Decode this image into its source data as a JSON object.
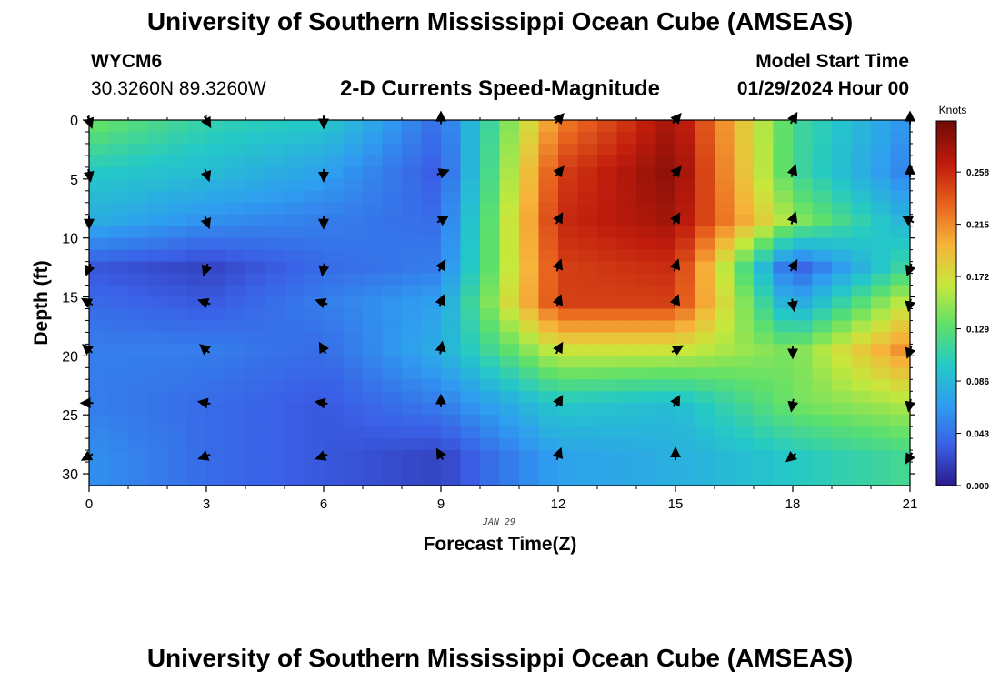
{
  "header": {
    "title": "University of Southern Mississippi Ocean Cube (AMSEAS)",
    "station": "WYCM6",
    "coords": "30.3260N  89.3260W",
    "subtitle": "2-D Currents Speed-Magnitude",
    "model_start_label": "Model Start Time",
    "model_start_value": "01/29/2024 Hour 00"
  },
  "footer": {
    "title": "University of Southern Mississippi Ocean Cube (AMSEAS)"
  },
  "colors": {
    "scale": [
      "#2c1b8a",
      "#3a5fe6",
      "#2f9df0",
      "#24c9c6",
      "#5ee06a",
      "#c7e83c",
      "#f6b43a",
      "#e8641e",
      "#c01c0c",
      "#6e0a06"
    ]
  },
  "chart_data": {
    "type": "heatmap",
    "title": "2-D Currents Speed-Magnitude",
    "xlabel": "Forecast Time(Z)",
    "ylabel": "Depth (ft)",
    "date_label": "JAN 29",
    "xlim": [
      0,
      21
    ],
    "ylim": [
      0,
      31
    ],
    "x_ticks": [
      0,
      3,
      6,
      9,
      12,
      15,
      18,
      21
    ],
    "y_ticks": [
      0,
      5,
      10,
      15,
      20,
      25,
      30
    ],
    "colorbar": {
      "label": "Knots",
      "ticks": [
        "0.000",
        "0.043",
        "0.086",
        "0.129",
        "0.172",
        "0.215",
        "0.258"
      ],
      "min": 0.0,
      "max": 0.3
    },
    "x_hours": [
      0,
      3,
      6,
      9,
      12,
      15,
      18,
      21
    ],
    "y_depths": [
      0,
      4.5,
      8.5,
      12.5,
      15.5,
      19.5,
      24,
      28.5
    ],
    "speeds": [
      [
        0.14,
        0.11,
        0.1,
        0.04,
        0.22,
        0.28,
        0.12,
        0.06
      ],
      [
        0.1,
        0.09,
        0.07,
        0.03,
        0.25,
        0.29,
        0.12,
        0.05
      ],
      [
        0.08,
        0.06,
        0.05,
        0.04,
        0.26,
        0.28,
        0.15,
        0.08
      ],
      [
        0.03,
        0.02,
        0.04,
        0.05,
        0.25,
        0.26,
        0.03,
        0.12
      ],
      [
        0.04,
        0.03,
        0.05,
        0.07,
        0.25,
        0.25,
        0.07,
        0.17
      ],
      [
        0.05,
        0.05,
        0.04,
        0.08,
        0.17,
        0.17,
        0.14,
        0.22
      ],
      [
        0.05,
        0.04,
        0.03,
        0.05,
        0.1,
        0.09,
        0.14,
        0.16
      ],
      [
        0.06,
        0.04,
        0.03,
        0.02,
        0.07,
        0.08,
        0.1,
        0.12
      ]
    ],
    "arrow_directions_deg": [
      [
        160,
        150,
        180,
        0,
        40,
        40,
        30,
        0
      ],
      [
        170,
        160,
        180,
        70,
        40,
        40,
        20,
        0
      ],
      [
        180,
        160,
        180,
        60,
        30,
        30,
        20,
        300
      ],
      [
        200,
        200,
        190,
        30,
        20,
        20,
        30,
        200
      ],
      [
        300,
        290,
        290,
        20,
        20,
        20,
        170,
        190
      ],
      [
        310,
        310,
        330,
        10,
        30,
        60,
        180,
        200
      ],
      [
        270,
        280,
        280,
        0,
        30,
        30,
        190,
        190
      ],
      [
        240,
        250,
        250,
        330,
        20,
        0,
        230,
        210
      ]
    ]
  }
}
